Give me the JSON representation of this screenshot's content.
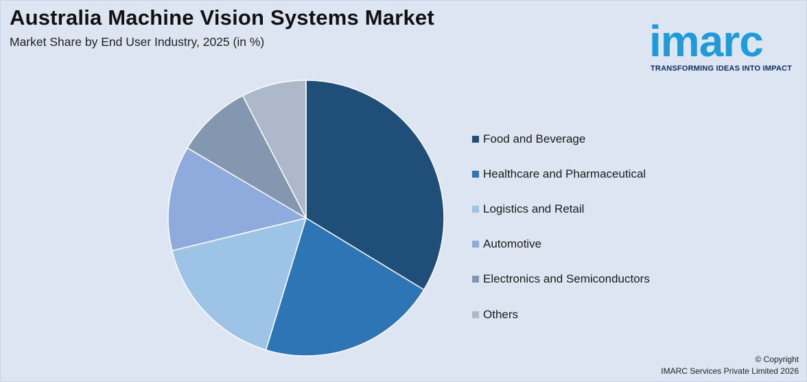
{
  "header": {
    "title": "Australia Machine Vision Systems Market",
    "subtitle": "Market Share by End User Industry, 2025 (in %)"
  },
  "logo": {
    "word": "imarc",
    "tagline": "TRANSFORMING IDEAS INTO IMPACT",
    "color": "#1e9bd8"
  },
  "chart_data": {
    "type": "pie",
    "title": "Australia Machine Vision Systems Market",
    "subtitle": "Market Share by End User Industry, 2025 (in %)",
    "categories": [
      "Food and Beverage",
      "Healthcare and Pharmaceutical",
      "Logistics and Retail",
      "Automotive",
      "Electronics and Semiconductors",
      "Others"
    ],
    "values": [
      33.7,
      21.0,
      16.5,
      12.3,
      8.9,
      7.6
    ],
    "colors": [
      "#1f4e79",
      "#2e75b6",
      "#9dc3e6",
      "#8faadc",
      "#8497b0",
      "#adb9ca"
    ],
    "legend_position": "right"
  },
  "footer": {
    "copyright_line1": "© Copyright",
    "copyright_line2": "IMARC Services Private Limited 2026"
  }
}
